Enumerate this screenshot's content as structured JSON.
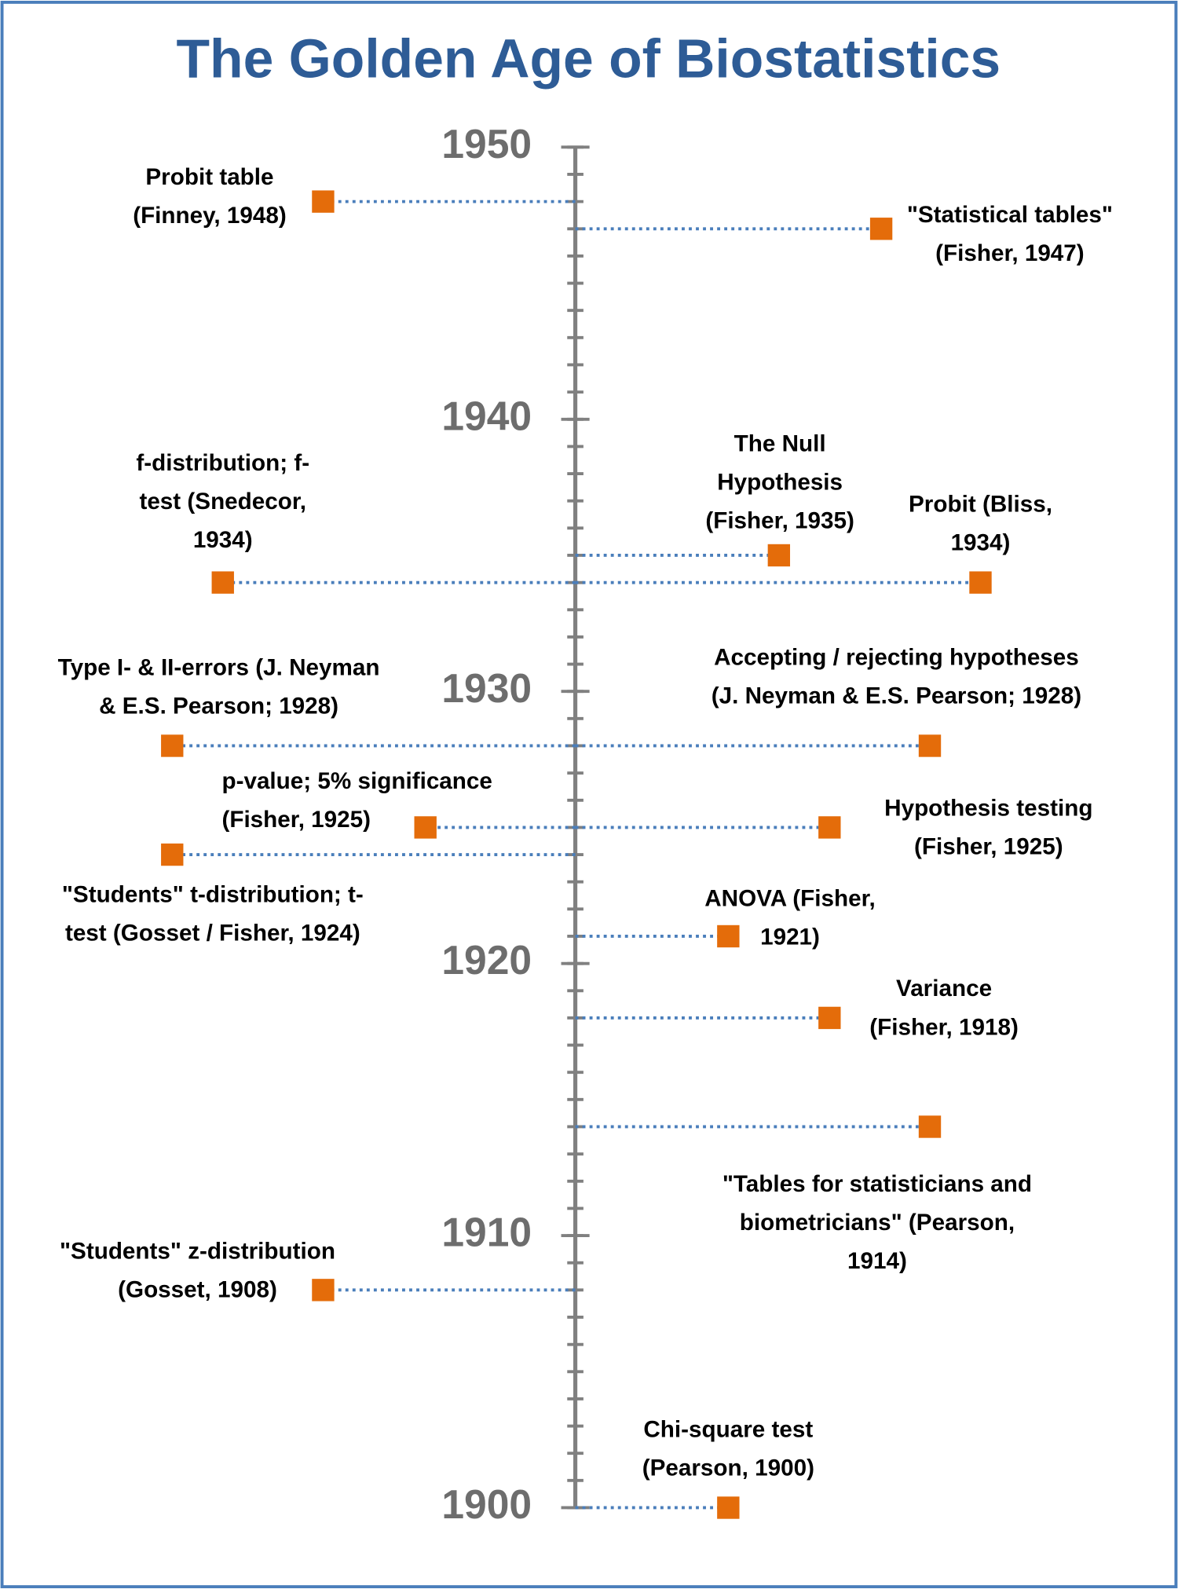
{
  "chart_data": {
    "type": "timeline",
    "title": "The Golden Age of Biostatistics",
    "ylim": [
      1900,
      1950
    ],
    "yticks": [
      1900,
      1910,
      1920,
      1930,
      1940,
      1950
    ],
    "marker_color": "#e46c0a",
    "line_color": "#4a7ebb",
    "axis_color": "#808080",
    "events": [
      {
        "lines": [
          "Probit table",
          "(Finney, 1948)"
        ],
        "year": 1948
      },
      {
        "lines": [
          "\"Statistical tables\"",
          "(Fisher, 1947)"
        ],
        "year": 1947
      },
      {
        "lines": [
          "f-distribution; f-",
          "test (Snedecor,",
          "1934)"
        ],
        "year": 1934
      },
      {
        "lines": [
          "The Null",
          "Hypothesis",
          "(Fisher, 1935)"
        ],
        "year": 1935
      },
      {
        "lines": [
          "Probit (Bliss,",
          "1934)"
        ],
        "year": 1934
      },
      {
        "lines": [
          "Type I- & II-errors (J. Neyman",
          "& E.S. Pearson; 1928)"
        ],
        "year": 1928
      },
      {
        "lines": [
          "Accepting / rejecting hypotheses",
          "(J. Neyman & E.S. Pearson; 1928)"
        ],
        "year": 1928
      },
      {
        "lines": [
          "p-value; 5% significance",
          "(Fisher, 1925)"
        ],
        "year": 1925
      },
      {
        "lines": [
          "Hypothesis testing",
          "(Fisher, 1925)"
        ],
        "year": 1925
      },
      {
        "lines": [
          "\"Students\" t-distribution; t-",
          "test (Gosset / Fisher, 1924)"
        ],
        "year": 1924
      },
      {
        "lines": [
          "ANOVA (Fisher,",
          "1921)"
        ],
        "year": 1921
      },
      {
        "lines": [
          "Variance",
          "(Fisher, 1918)"
        ],
        "year": 1918
      },
      {
        "lines": [
          "\"Tables for statisticians and",
          "biometricians\" (Pearson,",
          "1914)"
        ],
        "year": 1914
      },
      {
        "lines": [
          "\"Students\" z-distribution",
          "(Gosset, 1908)"
        ],
        "year": 1908
      },
      {
        "lines": [
          "Chi-square test",
          "(Pearson, 1900)"
        ],
        "year": 1900
      }
    ]
  }
}
